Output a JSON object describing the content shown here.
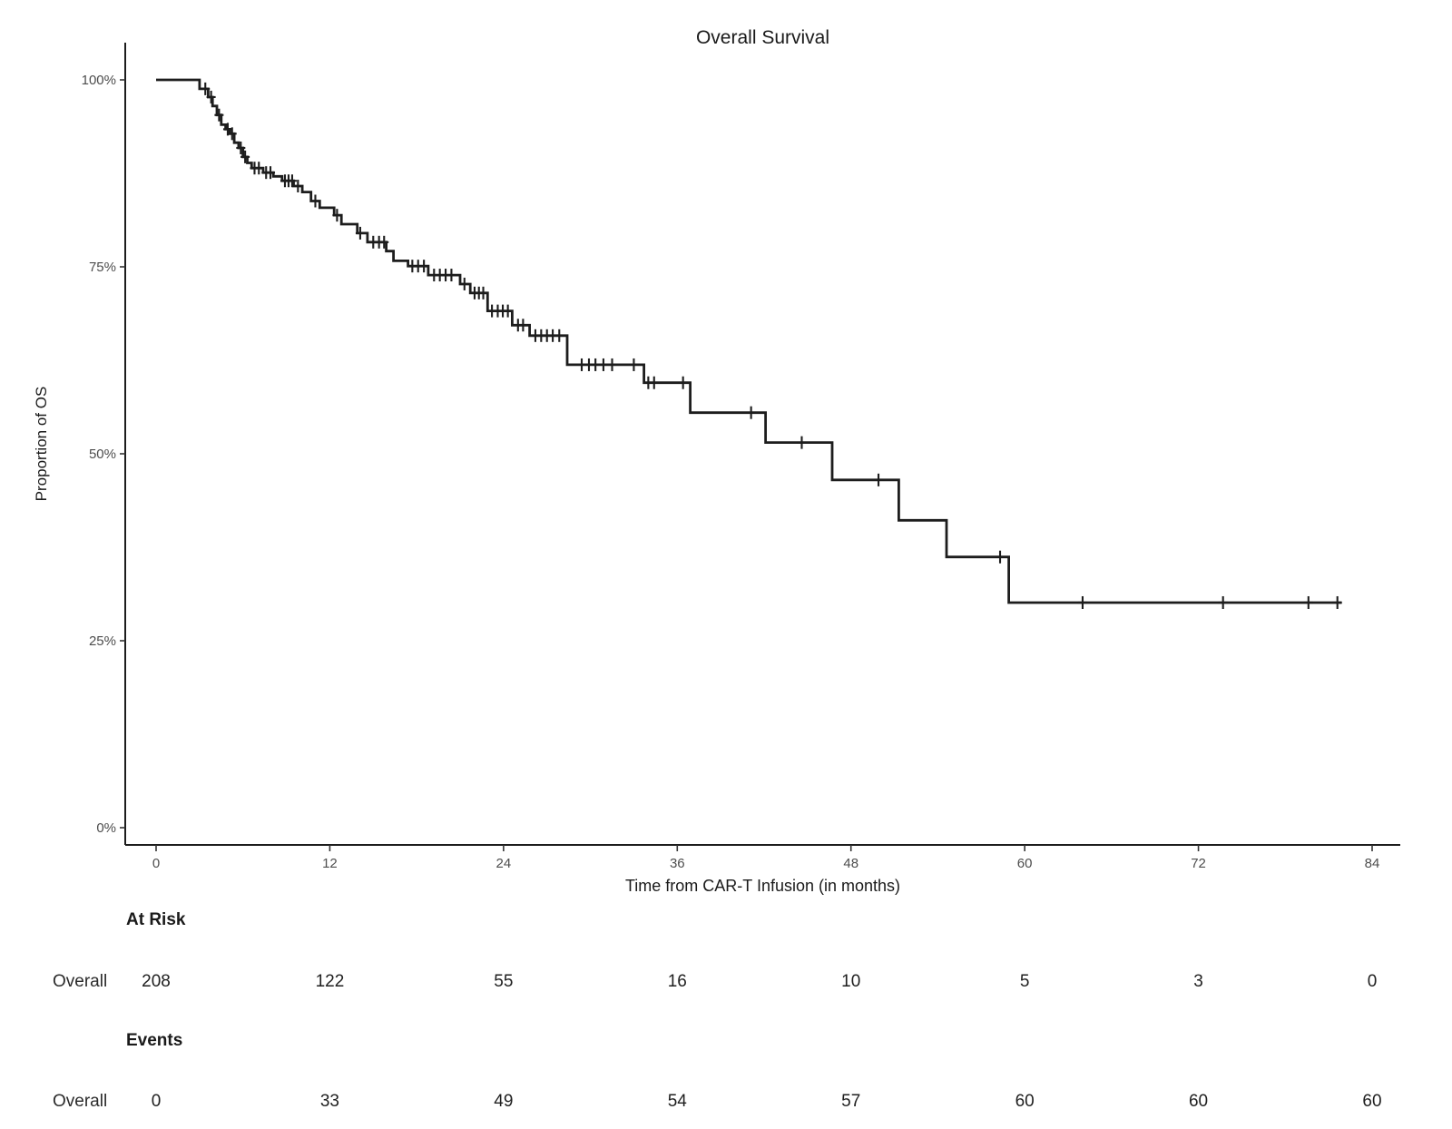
{
  "chart_data": {
    "type": "line",
    "subtype": "kaplan-meier-step-curve",
    "title": "Overall Survival",
    "xlabel": "Time from CAR-T Infusion (in months)",
    "ylabel": "Proportion of OS",
    "xlim": [
      0,
      84
    ],
    "ylim_percent": [
      0,
      100
    ],
    "grid": false,
    "legend_position": "none",
    "x_ticks": [
      0,
      12,
      24,
      36,
      48,
      60,
      72,
      84
    ],
    "y_ticks": [
      {
        "value": 0,
        "label": "0%"
      },
      {
        "value": 25,
        "label": "25%"
      },
      {
        "value": 50,
        "label": "50%"
      },
      {
        "value": 75,
        "label": "75%"
      },
      {
        "value": 100,
        "label": "100%"
      }
    ],
    "series": [
      {
        "name": "Overall",
        "color": "#1d1d1d",
        "end_time": 81.9,
        "steps": [
          [
            0,
            100
          ],
          [
            3.0,
            98.8
          ],
          [
            3.6,
            97.7
          ],
          [
            3.9,
            96.5
          ],
          [
            4.2,
            95.3
          ],
          [
            4.5,
            94.0
          ],
          [
            4.8,
            93.4
          ],
          [
            5.1,
            92.8
          ],
          [
            5.4,
            91.6
          ],
          [
            5.7,
            90.9
          ],
          [
            6.0,
            89.7
          ],
          [
            6.3,
            88.9
          ],
          [
            6.6,
            88.2
          ],
          [
            7.4,
            87.6
          ],
          [
            8.1,
            87.1
          ],
          [
            8.7,
            86.5
          ],
          [
            9.5,
            85.8
          ],
          [
            10.1,
            85.0
          ],
          [
            10.7,
            83.8
          ],
          [
            11.3,
            82.9
          ],
          [
            12.3,
            81.9
          ],
          [
            12.8,
            80.7
          ],
          [
            13.9,
            79.5
          ],
          [
            14.6,
            78.3
          ],
          [
            15.9,
            77.1
          ],
          [
            16.4,
            75.8
          ],
          [
            17.4,
            75.1
          ],
          [
            18.8,
            73.9
          ],
          [
            21.0,
            72.7
          ],
          [
            21.7,
            71.5
          ],
          [
            22.9,
            69.1
          ],
          [
            24.6,
            67.2
          ],
          [
            25.8,
            65.8
          ],
          [
            28.4,
            61.9
          ],
          [
            33.7,
            59.5
          ],
          [
            36.9,
            55.5
          ],
          [
            42.1,
            51.5
          ],
          [
            46.7,
            46.5
          ],
          [
            51.3,
            41.1
          ],
          [
            54.6,
            36.2
          ],
          [
            58.9,
            30.1
          ]
        ],
        "censor_marks": [
          [
            3.4,
            98.8
          ],
          [
            3.8,
            97.7
          ],
          [
            4.35,
            95.3
          ],
          [
            4.95,
            93.4
          ],
          [
            5.25,
            92.8
          ],
          [
            5.85,
            90.9
          ],
          [
            6.15,
            89.7
          ],
          [
            6.8,
            88.2
          ],
          [
            7.1,
            88.2
          ],
          [
            7.6,
            87.6
          ],
          [
            7.9,
            87.6
          ],
          [
            8.9,
            86.5
          ],
          [
            9.15,
            86.5
          ],
          [
            9.4,
            86.5
          ],
          [
            9.8,
            85.8
          ],
          [
            11.0,
            83.8
          ],
          [
            12.5,
            81.9
          ],
          [
            14.1,
            79.5
          ],
          [
            15.0,
            78.3
          ],
          [
            15.4,
            78.3
          ],
          [
            15.75,
            78.3
          ],
          [
            17.7,
            75.1
          ],
          [
            18.1,
            75.1
          ],
          [
            18.5,
            75.1
          ],
          [
            19.2,
            73.9
          ],
          [
            19.6,
            73.9
          ],
          [
            20.0,
            73.9
          ],
          [
            20.4,
            73.9
          ],
          [
            21.3,
            72.7
          ],
          [
            22.0,
            71.5
          ],
          [
            22.3,
            71.5
          ],
          [
            22.6,
            71.5
          ],
          [
            23.2,
            69.1
          ],
          [
            23.6,
            69.1
          ],
          [
            23.95,
            69.1
          ],
          [
            24.3,
            69.1
          ],
          [
            25.0,
            67.2
          ],
          [
            25.35,
            67.2
          ],
          [
            26.2,
            65.8
          ],
          [
            26.6,
            65.8
          ],
          [
            27.0,
            65.8
          ],
          [
            27.4,
            65.8
          ],
          [
            27.85,
            65.8
          ],
          [
            29.4,
            61.9
          ],
          [
            29.9,
            61.9
          ],
          [
            30.35,
            61.9
          ],
          [
            30.9,
            61.9
          ],
          [
            31.5,
            61.9
          ],
          [
            33.0,
            61.9
          ],
          [
            34.0,
            59.5
          ],
          [
            34.4,
            59.5
          ],
          [
            36.4,
            59.5
          ],
          [
            41.1,
            55.5
          ],
          [
            44.6,
            51.5
          ],
          [
            49.9,
            46.5
          ],
          [
            58.3,
            36.2
          ],
          [
            64.0,
            30.1
          ],
          [
            73.7,
            30.1
          ],
          [
            79.6,
            30.1
          ],
          [
            81.6,
            30.1
          ]
        ]
      }
    ],
    "risk_table": {
      "title": "At Risk",
      "row_label": "Overall",
      "times": [
        0,
        12,
        24,
        36,
        48,
        60,
        72,
        84
      ],
      "values": [
        208,
        122,
        55,
        16,
        10,
        5,
        3,
        0
      ]
    },
    "events_table": {
      "title": "Events",
      "row_label": "Overall",
      "times": [
        0,
        12,
        24,
        36,
        48,
        60,
        72,
        84
      ],
      "values": [
        0,
        33,
        49,
        54,
        57,
        60,
        60,
        60
      ]
    }
  },
  "colors": {
    "curve": "#1d1d1d",
    "axis_line": "#1d1d1d",
    "tick_mark": "#333333",
    "tick_label": "#4d4d4d",
    "text": "#1a1a1a",
    "background": "#ffffff"
  }
}
